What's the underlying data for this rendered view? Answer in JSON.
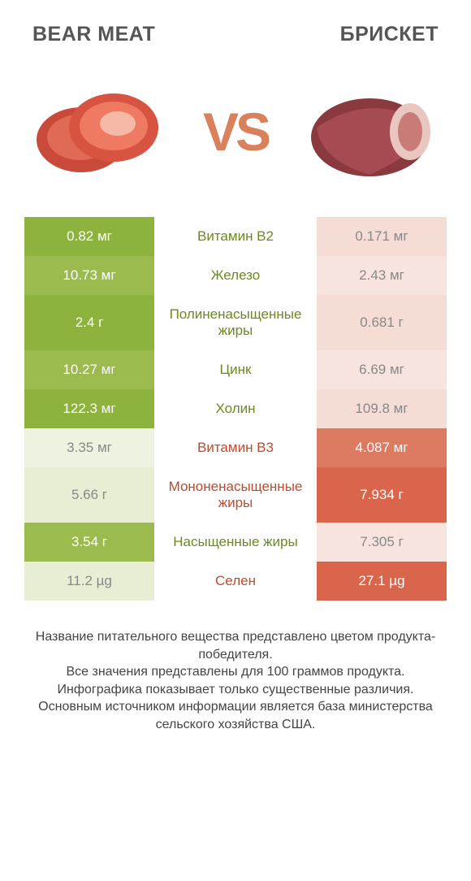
{
  "colors": {
    "left_winner_bg": "#8eb23e",
    "left_winner_alt_bg": "#9cbb4f",
    "left_loser_bg": "#e7eed4",
    "left_loser_alt_bg": "#eef2e1",
    "right_winner_bg": "#d9664c",
    "right_winner_alt_bg": "#dd7a62",
    "right_loser_bg": "#f5dcd5",
    "right_loser_alt_bg": "#f7e4de",
    "left_text_win": "#6b8a1c",
    "right_text_win": "#c04a2f",
    "loser_text": "#888888",
    "vs_color": "#d9805d",
    "header_color": "#555555",
    "footer_color": "#444444",
    "bg": "#ffffff"
  },
  "header": {
    "left_title": "BEAR MEAT",
    "right_title": "БРИСКЕТ",
    "vs_label": "VS"
  },
  "rows": [
    {
      "left": "0.82 мг",
      "label": "Витамин B2",
      "right": "0.171 мг",
      "winner": "left"
    },
    {
      "left": "10.73 мг",
      "label": "Железо",
      "right": "2.43 мг",
      "winner": "left"
    },
    {
      "left": "2.4 г",
      "label": "Полиненасыщенные жиры",
      "right": "0.681 г",
      "winner": "left"
    },
    {
      "left": "10.27 мг",
      "label": "Цинк",
      "right": "6.69 мг",
      "winner": "left"
    },
    {
      "left": "122.3 мг",
      "label": "Холин",
      "right": "109.8 мг",
      "winner": "left"
    },
    {
      "left": "3.35 мг",
      "label": "Витамин B3",
      "right": "4.087 мг",
      "winner": "right"
    },
    {
      "left": "5.66 г",
      "label": "Мононенасыщенные жиры",
      "right": "7.934 г",
      "winner": "right"
    },
    {
      "left": "3.54 г",
      "label": "Насыщенные жиры",
      "right": "7.305 г",
      "winner": "left"
    },
    {
      "left": "11.2 µg",
      "label": "Селен",
      "right": "27.1 µg",
      "winner": "right"
    }
  ],
  "footer_lines": [
    "Название питательного вещества представлено цветом продукта-победителя.",
    "Все значения представлены для 100 граммов продукта.",
    "Инфографика показывает только существенные различия.",
    "Основным источником информации является база министерства сельского хозяйства США."
  ]
}
